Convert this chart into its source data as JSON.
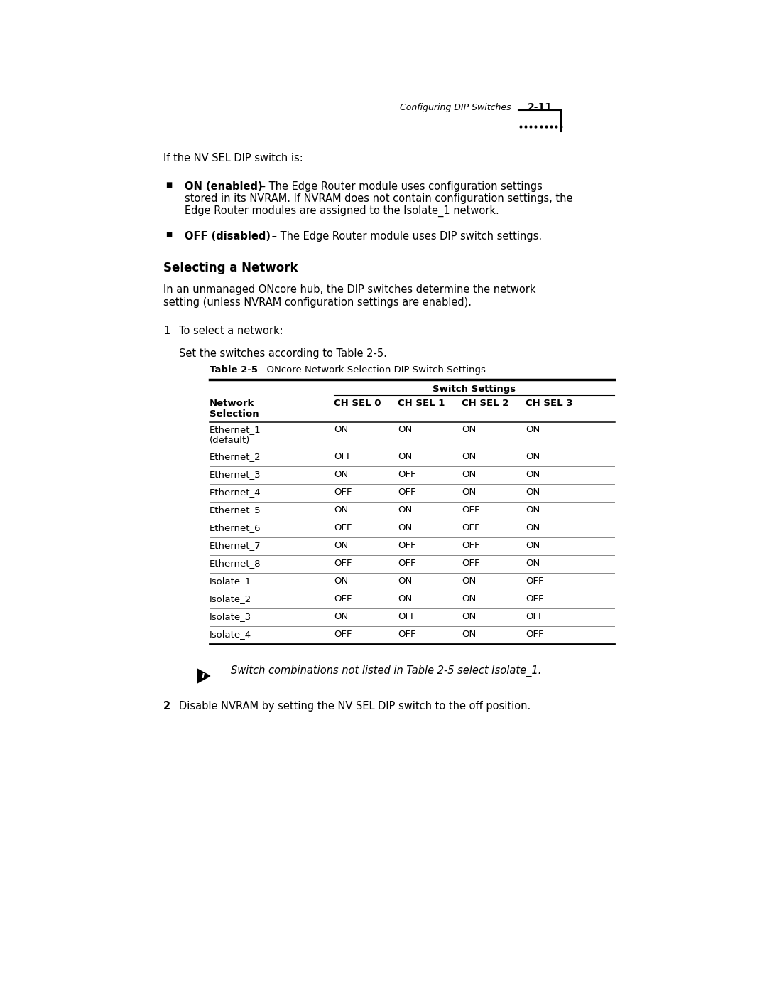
{
  "bg_color": "#ffffff",
  "page_header_italic": "Configuring DIP Switches",
  "page_number": "2-11",
  "intro_text": "If the NV SEL DIP switch is:",
  "bullet_on_bold": "ON (enabled)",
  "bullet_on_line1": " – The Edge Router module uses configuration settings",
  "bullet_on_line2": "stored in its NVRAM. If NVRAM does not contain configuration settings, the",
  "bullet_on_line3": "Edge Router modules are assigned to the Isolate_1 network.",
  "bullet_off_bold": "OFF (disabled)",
  "bullet_off_rest": " – The Edge Router module uses DIP switch settings.",
  "section_title": "Selecting a Network",
  "section_line1": "In an unmanaged ONcore hub, the DIP switches determine the network",
  "section_line2": "setting (unless NVRAM configuration settings are enabled).",
  "step1_text": "To select a network:",
  "step1_sub": "Set the switches according to Table 2-5.",
  "table_label_bold": "Table 2-5",
  "table_label_rest": "  ONcore Network Selection DIP Switch Settings",
  "table_header_group": "Switch Settings",
  "table_col0": "Network",
  "table_col0b": "Selection",
  "table_cols": [
    "CH SEL 0",
    "CH SEL 1",
    "CH SEL 2",
    "CH SEL 3"
  ],
  "table_rows": [
    [
      "Ethernet_1",
      "(default)",
      "ON",
      "ON",
      "ON",
      "ON"
    ],
    [
      "Ethernet_2",
      "",
      "OFF",
      "ON",
      "ON",
      "ON"
    ],
    [
      "Ethernet_3",
      "",
      "ON",
      "OFF",
      "ON",
      "ON"
    ],
    [
      "Ethernet_4",
      "",
      "OFF",
      "OFF",
      "ON",
      "ON"
    ],
    [
      "Ethernet_5",
      "",
      "ON",
      "ON",
      "OFF",
      "ON"
    ],
    [
      "Ethernet_6",
      "",
      "OFF",
      "ON",
      "OFF",
      "ON"
    ],
    [
      "Ethernet_7",
      "",
      "ON",
      "OFF",
      "OFF",
      "ON"
    ],
    [
      "Ethernet_8",
      "",
      "OFF",
      "OFF",
      "OFF",
      "ON"
    ],
    [
      "Isolate_1",
      "",
      "ON",
      "ON",
      "ON",
      "OFF"
    ],
    [
      "Isolate_2",
      "",
      "OFF",
      "ON",
      "ON",
      "OFF"
    ],
    [
      "Isolate_3",
      "",
      "ON",
      "OFF",
      "ON",
      "OFF"
    ],
    [
      "Isolate_4",
      "",
      "OFF",
      "OFF",
      "ON",
      "OFF"
    ]
  ],
  "note_italic": "Switch combinations not listed in Table 2-5 select Isolate_1.",
  "step2_text": "Disable NVRAM by setting the NV SEL DIP switch to the off position."
}
